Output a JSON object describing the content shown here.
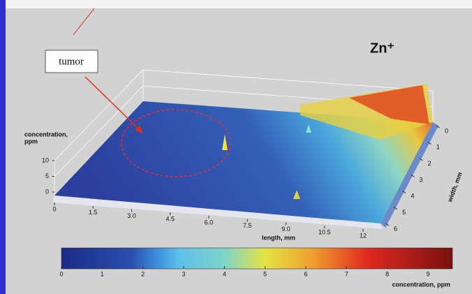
{
  "title": "Zn⁺",
  "annotation": "tumor",
  "z_axis": {
    "label_lines": [
      "concentration,",
      "ppm"
    ],
    "range": [
      0,
      10
    ],
    "ticks": [
      0,
      5,
      10
    ]
  },
  "x_axis": {
    "label": "length, mm",
    "range": [
      0,
      12
    ],
    "ticks": [
      0,
      1.5,
      {
        "value": 3,
        "label": "3.0"
      },
      4.5,
      {
        "value": 6,
        "label": "6.0"
      },
      7.5,
      {
        "value": 9,
        "label": "9.0"
      },
      10.5,
      12
    ]
  },
  "y_axis": {
    "label": "width, mm",
    "range": [
      0,
      6
    ],
    "ticks": [
      0,
      1,
      2,
      3,
      4,
      5,
      6
    ]
  },
  "colorbar": {
    "label": "concentration, ppm",
    "range": [
      0,
      9.6
    ],
    "ticks": [
      0,
      1,
      2,
      3,
      4,
      5,
      6,
      7,
      8,
      9
    ]
  }
}
